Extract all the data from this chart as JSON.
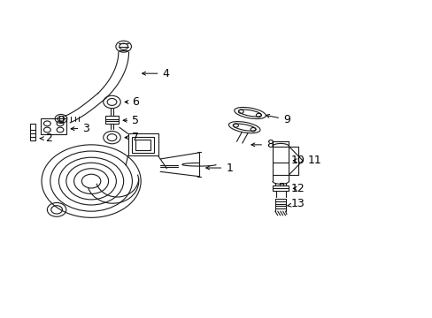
{
  "bg_color": "#ffffff",
  "line_color": "#1a1a1a",
  "fig_width": 4.89,
  "fig_height": 3.6,
  "dpi": 100,
  "label_fontsize": 9,
  "label_positions": {
    "1": [
      0.535,
      0.465,
      0.48,
      0.475
    ],
    "2": [
      0.115,
      0.565,
      0.085,
      0.565
    ],
    "3": [
      0.2,
      0.595,
      0.155,
      0.59
    ],
    "4": [
      0.385,
      0.77,
      0.335,
      0.77
    ],
    "5": [
      0.315,
      0.62,
      0.278,
      0.62
    ],
    "6": [
      0.315,
      0.68,
      0.278,
      0.68
    ],
    "7": [
      0.315,
      0.565,
      0.278,
      0.565
    ],
    "8": [
      0.625,
      0.54,
      0.575,
      0.54
    ],
    "9": [
      0.665,
      0.625,
      0.605,
      0.625
    ],
    "10": [
      0.685,
      0.495,
      0.645,
      0.495
    ],
    "11": [
      0.73,
      0.495,
      0.73,
      0.495
    ],
    "12": [
      0.685,
      0.395,
      0.65,
      0.395
    ],
    "13": [
      0.685,
      0.35,
      0.65,
      0.35
    ]
  }
}
